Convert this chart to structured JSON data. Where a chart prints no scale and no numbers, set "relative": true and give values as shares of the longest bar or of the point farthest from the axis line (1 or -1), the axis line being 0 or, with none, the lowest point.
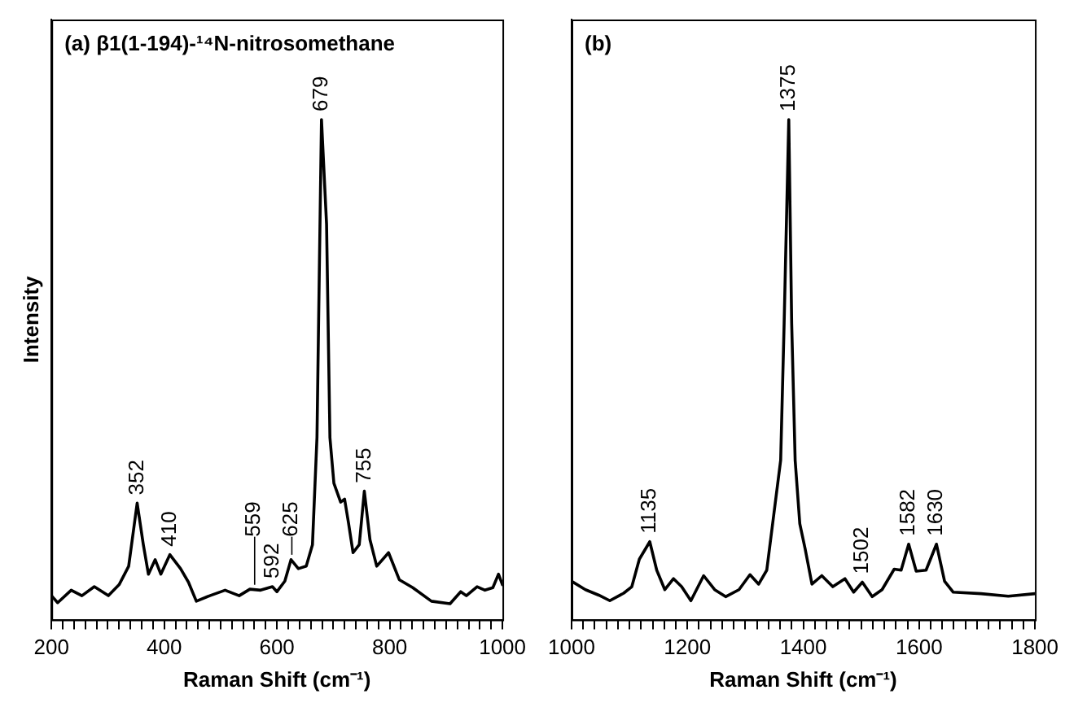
{
  "chart_data": [
    {
      "type": "line",
      "title": "(a) β1(1-194)-¹⁴N-nitrosomethane",
      "xlabel": "Raman Shift (cm⁻¹)",
      "ylabel": "Intensity",
      "relative": true,
      "legend": false,
      "grid": false,
      "tick_labels": "x",
      "xlim": [
        200,
        1000
      ],
      "xticks": [
        200,
        {
          "value": 220,
          "label": null
        },
        {
          "value": 240,
          "label": null
        },
        {
          "value": 260,
          "label": null
        },
        {
          "value": 280,
          "label": null
        },
        {
          "value": 300,
          "label": null
        },
        {
          "value": 320,
          "label": null
        },
        {
          "value": 340,
          "label": null
        },
        {
          "value": 360,
          "label": null
        },
        {
          "value": 380,
          "label": null
        },
        400,
        {
          "value": 420,
          "label": null
        },
        {
          "value": 440,
          "label": null
        },
        {
          "value": 460,
          "label": null
        },
        {
          "value": 480,
          "label": null
        },
        {
          "value": 500,
          "label": null
        },
        {
          "value": 520,
          "label": null
        },
        {
          "value": 540,
          "label": null
        },
        {
          "value": 560,
          "label": null
        },
        {
          "value": 580,
          "label": null
        },
        600,
        {
          "value": 620,
          "label": null
        },
        {
          "value": 640,
          "label": null
        },
        {
          "value": 660,
          "label": null
        },
        {
          "value": 680,
          "label": null
        },
        {
          "value": 700,
          "label": null
        },
        {
          "value": 720,
          "label": null
        },
        {
          "value": 740,
          "label": null
        },
        {
          "value": 760,
          "label": null
        },
        {
          "value": 780,
          "label": null
        },
        800,
        {
          "value": 820,
          "label": null
        },
        {
          "value": 840,
          "label": null
        },
        {
          "value": 860,
          "label": null
        },
        {
          "value": 880,
          "label": null
        },
        {
          "value": 900,
          "label": null
        },
        {
          "value": 920,
          "label": null
        },
        {
          "value": 940,
          "label": null
        },
        {
          "value": 960,
          "label": null
        },
        {
          "value": 980,
          "label": null
        },
        1000
      ],
      "x": [
        200,
        211,
        235,
        254,
        276,
        301,
        320,
        337,
        352,
        363,
        372,
        384,
        394,
        410,
        429,
        443,
        457,
        481,
        508,
        533,
        552,
        571,
        592,
        600,
        614,
        625,
        638,
        652,
        663,
        671,
        675,
        679,
        688,
        694,
        701,
        713,
        720,
        727,
        735,
        746,
        755,
        765,
        777,
        798,
        817,
        841,
        874,
        907,
        926,
        936,
        955,
        969,
        983,
        993,
        1000
      ],
      "series": [
        {
          "color": "#000000",
          "values": [
            0.048,
            0.034,
            0.059,
            0.048,
            0.066,
            0.048,
            0.07,
            0.107,
            0.233,
            0.15,
            0.091,
            0.12,
            0.091,
            0.13,
            0.102,
            0.075,
            0.037,
            0.048,
            0.059,
            0.048,
            0.061,
            0.059,
            0.066,
            0.056,
            0.077,
            0.12,
            0.102,
            0.107,
            0.15,
            0.364,
            0.684,
            1,
            0.791,
            0.364,
            0.273,
            0.235,
            0.241,
            0.193,
            0.134,
            0.15,
            0.257,
            0.16,
            0.107,
            0.134,
            0.08,
            0.064,
            0.037,
            0.032,
            0.056,
            0.048,
            0.066,
            0.059,
            0.064,
            0.091,
            0.07
          ]
        }
      ],
      "annotations": [
        {
          "text": "352",
          "x": 352,
          "y": 0.233
        },
        {
          "text": "410",
          "x": 410,
          "y": 0.13
        },
        {
          "text": "592",
          "x": 592,
          "y": 0.066
        },
        {
          "text": "559",
          "x": 559,
          "y": 0.06
        },
        {
          "text": "625",
          "x": 625,
          "y": 0.12
        },
        {
          "text": "679",
          "x": 679,
          "y": 1
        },
        {
          "text": "755",
          "x": 755,
          "y": 0.257
        }
      ]
    },
    {
      "type": "line",
      "title": "(b)",
      "xlabel": "Raman Shift (cm⁻¹)",
      "relative": true,
      "legend": false,
      "grid": false,
      "tick_labels": "x",
      "xlim": [
        1000,
        1800
      ],
      "xticks": [
        1000,
        {
          "value": 1020,
          "label": null
        },
        {
          "value": 1040,
          "label": null
        },
        {
          "value": 1060,
          "label": null
        },
        {
          "value": 1080,
          "label": null
        },
        {
          "value": 1100,
          "label": null
        },
        {
          "value": 1120,
          "label": null
        },
        {
          "value": 1140,
          "label": null
        },
        {
          "value": 1160,
          "label": null
        },
        {
          "value": 1180,
          "label": null
        },
        1200,
        {
          "value": 1220,
          "label": null
        },
        {
          "value": 1240,
          "label": null
        },
        {
          "value": 1260,
          "label": null
        },
        {
          "value": 1280,
          "label": null
        },
        {
          "value": 1300,
          "label": null
        },
        {
          "value": 1320,
          "label": null
        },
        {
          "value": 1340,
          "label": null
        },
        {
          "value": 1360,
          "label": null
        },
        {
          "value": 1380,
          "label": null
        },
        1400,
        {
          "value": 1420,
          "label": null
        },
        {
          "value": 1440,
          "label": null
        },
        {
          "value": 1460,
          "label": null
        },
        {
          "value": 1480,
          "label": null
        },
        {
          "value": 1500,
          "label": null
        },
        {
          "value": 1520,
          "label": null
        },
        {
          "value": 1540,
          "label": null
        },
        {
          "value": 1560,
          "label": null
        },
        {
          "value": 1580,
          "label": null
        },
        1600,
        {
          "value": 1620,
          "label": null
        },
        {
          "value": 1640,
          "label": null
        },
        {
          "value": 1660,
          "label": null
        },
        {
          "value": 1680,
          "label": null
        },
        {
          "value": 1700,
          "label": null
        },
        {
          "value": 1720,
          "label": null
        },
        {
          "value": 1740,
          "label": null
        },
        {
          "value": 1760,
          "label": null
        },
        {
          "value": 1780,
          "label": null
        },
        1800
      ],
      "x": [
        1000,
        1024,
        1047,
        1066,
        1090,
        1104,
        1117,
        1135,
        1147,
        1161,
        1176,
        1190,
        1206,
        1228,
        1247,
        1266,
        1289,
        1308,
        1323,
        1337,
        1349,
        1361,
        1367,
        1375,
        1380,
        1386,
        1394,
        1403,
        1415,
        1432,
        1451,
        1472,
        1487,
        1502,
        1519,
        1536,
        1557,
        1569,
        1582,
        1595,
        1612,
        1630,
        1644,
        1659,
        1707,
        1754,
        1800
      ],
      "series": [
        {
          "color": "#000000",
          "values": [
            0.077,
            0.06,
            0.049,
            0.038,
            0.053,
            0.066,
            0.121,
            0.156,
            0.099,
            0.06,
            0.082,
            0.066,
            0.038,
            0.088,
            0.06,
            0.046,
            0.06,
            0.09,
            0.071,
            0.099,
            0.209,
            0.319,
            0.593,
            1,
            0.593,
            0.319,
            0.192,
            0.143,
            0.071,
            0.088,
            0.066,
            0.082,
            0.055,
            0.075,
            0.046,
            0.06,
            0.101,
            0.099,
            0.151,
            0.097,
            0.099,
            0.151,
            0.077,
            0.055,
            0.052,
            0.047,
            0.052
          ]
        }
      ],
      "annotations": [
        {
          "text": "1135",
          "x": 1135,
          "y": 0.156
        },
        {
          "text": "1375",
          "x": 1375,
          "y": 1
        },
        {
          "text": "1502",
          "x": 1502,
          "y": 0.075
        },
        {
          "text": "1582",
          "x": 1582,
          "y": 0.151
        },
        {
          "text": "1630",
          "x": 1630,
          "y": 0.151
        }
      ]
    }
  ]
}
